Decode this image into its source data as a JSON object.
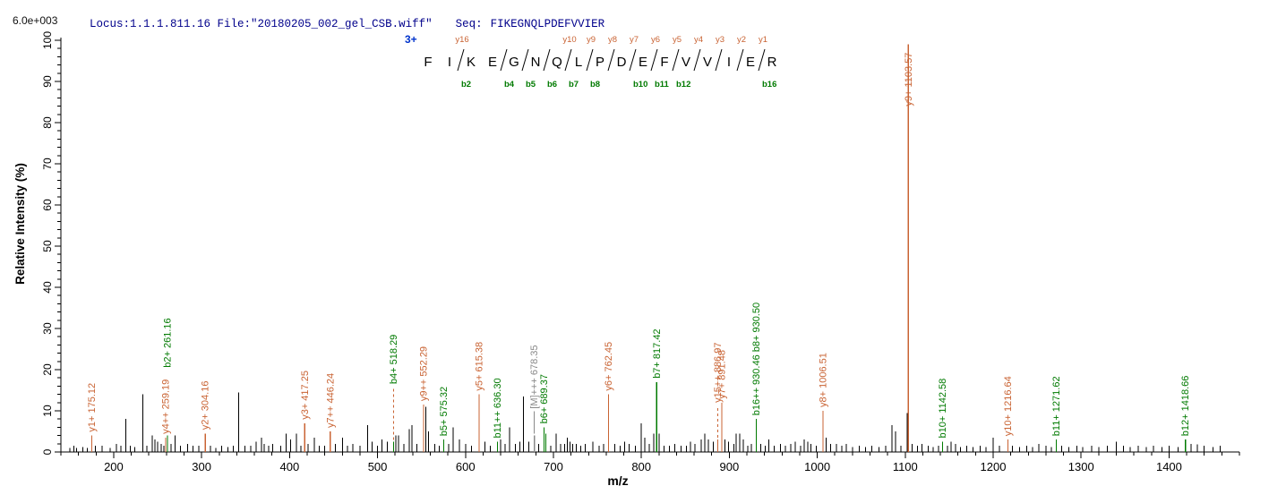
{
  "header": {
    "locus_file": "Locus:1.1.1.811.16 File:\"20180205_002_gel_CSB.wiff\"",
    "seq_label": "Seq:",
    "sequence": "FIKEGNQLPDEFVVIER"
  },
  "scale_note": "6.0e+003",
  "colors": {
    "orange": "#c96333",
    "green": "#007a00",
    "gray": "#8a8a8a",
    "black": "#000000",
    "navy": "#00008b",
    "blue": "#0033cc"
  },
  "peptide": {
    "charge": "3+",
    "residues": [
      "F",
      "I",
      "K",
      "E",
      "G",
      "N",
      "Q",
      "L",
      "P",
      "D",
      "E",
      "F",
      "V",
      "V",
      "I",
      "E",
      "R"
    ],
    "boundaries": [
      {
        "after": 2,
        "y": "y16",
        "b": "b2"
      },
      {
        "after": 4,
        "y": null,
        "b": "b4"
      },
      {
        "after": 5,
        "y": null,
        "b": "b5"
      },
      {
        "after": 6,
        "y": null,
        "b": "b6"
      },
      {
        "after": 7,
        "y": "y10",
        "b": "b7"
      },
      {
        "after": 8,
        "y": "y9",
        "b": "b8"
      },
      {
        "after": 9,
        "y": "y8",
        "b": null
      },
      {
        "after": 10,
        "y": "y7",
        "b": "b10"
      },
      {
        "after": 11,
        "y": "y6",
        "b": "b11"
      },
      {
        "after": 12,
        "y": "y5",
        "b": "b12"
      },
      {
        "after": 13,
        "y": "y4",
        "b": null
      },
      {
        "after": 14,
        "y": "y3",
        "b": null
      },
      {
        "after": 15,
        "y": "y2",
        "b": null
      },
      {
        "after": 16,
        "y": "y1",
        "b": "b16"
      }
    ]
  },
  "chart_data": {
    "type": "bar",
    "xlabel": "m/z",
    "ylabel": "Relative  Intensity (%)",
    "intensity_scale": "6.0e+003",
    "x_range": [
      140,
      1480
    ],
    "y_range": [
      0,
      100
    ],
    "x_ticks": {
      "major_step": 100,
      "minor_step": 20,
      "labeled_from": 200,
      "labeled_to": 1400
    },
    "y_ticks": {
      "major_step": 10,
      "minor_step": 2
    },
    "labeled_peaks": [
      {
        "ion": "y1+",
        "mz": 175.12,
        "pct": 4,
        "label": "y1+ 175.12",
        "color": "orange"
      },
      {
        "ion": "y4++",
        "mz": 259.19,
        "pct": 3.5,
        "label": "y4++ 259.19",
        "color": "orange"
      },
      {
        "ion": "b2+",
        "mz": 261.16,
        "pct": 4,
        "label": "b2+ 261.16",
        "color": "green",
        "label_base_pct": 20.5
      },
      {
        "ion": "y2+",
        "mz": 304.16,
        "pct": 4.5,
        "label": "y2+ 304.16",
        "color": "orange"
      },
      {
        "ion": "y3+",
        "mz": 417.25,
        "pct": 7,
        "label": "y3+ 417.25",
        "color": "orange"
      },
      {
        "ion": "y7++",
        "mz": 446.24,
        "pct": 5,
        "label": "y7++ 446.24",
        "color": "orange"
      },
      {
        "ion": "b4+",
        "mz": 518.29,
        "pct": 2.5,
        "label": "b4+ 518.29",
        "color": "green",
        "label_base_pct": 16.5,
        "connector": "dashed",
        "connector_color": "orange"
      },
      {
        "ion": "y9++",
        "mz": 552.29,
        "pct": 11.5,
        "label": "y9++ 552.29",
        "color": "orange"
      },
      {
        "ion": "b5+",
        "mz": 575.32,
        "pct": 3,
        "label": "b5+ 575.32",
        "color": "green"
      },
      {
        "ion": "y5+",
        "mz": 615.38,
        "pct": 14,
        "label": "y5+ 615.38",
        "color": "orange"
      },
      {
        "ion": "b11++",
        "mz": 636.3,
        "pct": 2.5,
        "label": "b11++ 636.30",
        "color": "green"
      },
      {
        "ion": "[M]+++",
        "mz": 678.35,
        "pct": 4,
        "label": "[M]+++ 678.35",
        "color": "gray",
        "label_base_pct": 10.5,
        "connector": "solid",
        "connector_color": "gray"
      },
      {
        "ion": "b6+",
        "mz": 689.37,
        "pct": 6,
        "label": "b6+ 689.37",
        "color": "green"
      },
      {
        "ion": "y6+",
        "mz": 762.45,
        "pct": 14,
        "label": "y6+ 762.45",
        "color": "orange"
      },
      {
        "ion": "b7+",
        "mz": 817.42,
        "pct": 17,
        "label": "b7+ 817.42",
        "color": "green"
      },
      {
        "ion": "y15++",
        "mz": 886.97,
        "pct": 3,
        "label": "y15++ 886.97",
        "color": "orange",
        "label_base_pct": 12,
        "connector": "dashed",
        "connector_color": "orange"
      },
      {
        "ion": "y7+",
        "mz": 891.48,
        "pct": 12,
        "label": "y7+ 891.48",
        "color": "orange"
      },
      {
        "ion": "b16++/b8+",
        "mz": 930.5,
        "pct": 8,
        "label": "b16++ 930.46 b8+ 930.50",
        "color": "green"
      },
      {
        "ion": "y8+",
        "mz": 1006.51,
        "pct": 10,
        "label": "y8+ 1006.51",
        "color": "orange"
      },
      {
        "ion": "y9+",
        "mz": 1103.57,
        "pct": 99,
        "label": "y9+ 1103.57",
        "color": "orange",
        "label_base_pct": 84,
        "width": 1.6
      },
      {
        "ion": "b10+",
        "mz": 1142.58,
        "pct": 2.5,
        "label": "b10+ 1142.58",
        "color": "green"
      },
      {
        "ion": "y10+",
        "mz": 1216.64,
        "pct": 3,
        "label": "y10+ 1216.64",
        "color": "orange"
      },
      {
        "ion": "b11+",
        "mz": 1271.62,
        "pct": 3,
        "label": "b11+ 1271.62",
        "color": "green"
      },
      {
        "ion": "b12+",
        "mz": 1418.66,
        "pct": 3,
        "label": "b12+ 1418.66",
        "color": "green"
      }
    ],
    "unlabeled_peaks": [
      [
        150,
        1
      ],
      [
        155,
        1.5
      ],
      [
        158,
        1
      ],
      [
        165,
        1.2
      ],
      [
        170,
        1
      ],
      [
        179,
        1.5
      ],
      [
        187,
        1.5
      ],
      [
        196,
        1
      ],
      [
        203,
        2
      ],
      [
        208,
        1.5
      ],
      [
        214,
        8
      ],
      [
        219,
        1.5
      ],
      [
        224,
        1.2
      ],
      [
        233,
        14
      ],
      [
        238,
        1.5
      ],
      [
        244,
        4
      ],
      [
        247,
        3
      ],
      [
        250,
        2.5
      ],
      [
        254,
        2
      ],
      [
        257,
        1.5
      ],
      [
        265,
        2
      ],
      [
        270,
        4
      ],
      [
        276,
        1.5
      ],
      [
        284,
        2
      ],
      [
        290,
        1.5
      ],
      [
        297,
        1.5
      ],
      [
        310,
        1.5
      ],
      [
        316,
        1
      ],
      [
        323,
        1.5
      ],
      [
        330,
        1.2
      ],
      [
        336,
        1.5
      ],
      [
        342,
        14.5
      ],
      [
        349,
        1.5
      ],
      [
        356,
        1.5
      ],
      [
        362,
        2.5
      ],
      [
        368,
        3.5
      ],
      [
        371,
        2
      ],
      [
        376,
        1.5
      ],
      [
        381,
        2
      ],
      [
        390,
        1.5
      ],
      [
        396,
        4.5
      ],
      [
        401,
        3
      ],
      [
        408,
        4.5
      ],
      [
        413,
        1.5
      ],
      [
        421,
        2
      ],
      [
        428,
        3.5
      ],
      [
        434,
        1.5
      ],
      [
        440,
        1.5
      ],
      [
        452,
        2
      ],
      [
        460,
        3.5
      ],
      [
        466,
        1.5
      ],
      [
        472,
        2
      ],
      [
        480,
        1.5
      ],
      [
        489,
        6.5
      ],
      [
        494,
        2.5
      ],
      [
        500,
        1.5
      ],
      [
        505,
        3
      ],
      [
        511,
        2.5
      ],
      [
        521,
        4
      ],
      [
        524,
        4
      ],
      [
        530,
        2
      ],
      [
        536,
        5.5
      ],
      [
        539,
        6.5
      ],
      [
        545,
        2
      ],
      [
        555,
        11
      ],
      [
        558,
        5
      ],
      [
        565,
        2
      ],
      [
        570,
        1.5
      ],
      [
        581,
        2
      ],
      [
        586,
        6
      ],
      [
        593,
        3
      ],
      [
        600,
        2
      ],
      [
        607,
        1.5
      ],
      [
        622,
        2.5
      ],
      [
        628,
        1.5
      ],
      [
        640,
        3
      ],
      [
        645,
        2
      ],
      [
        650,
        6
      ],
      [
        657,
        2
      ],
      [
        662,
        2.5
      ],
      [
        666,
        13.5
      ],
      [
        672,
        2.5
      ],
      [
        683,
        2
      ],
      [
        691.5,
        4.5,
        "g"
      ],
      [
        697,
        1.5
      ],
      [
        703,
        4.5
      ],
      [
        708,
        2
      ],
      [
        713,
        2
      ],
      [
        716,
        3.5
      ],
      [
        719,
        2.5
      ],
      [
        722,
        2
      ],
      [
        726,
        2
      ],
      [
        731,
        1.5
      ],
      [
        736,
        2
      ],
      [
        745,
        2.5
      ],
      [
        752,
        1.5
      ],
      [
        757,
        2
      ],
      [
        770,
        2
      ],
      [
        776,
        1.5
      ],
      [
        781,
        2.5
      ],
      [
        786,
        2
      ],
      [
        793,
        1.5
      ],
      [
        800,
        7
      ],
      [
        804,
        3.5
      ],
      [
        809,
        2
      ],
      [
        814,
        4.5
      ],
      [
        820,
        4.5
      ],
      [
        826,
        1.5
      ],
      [
        832,
        1.5
      ],
      [
        838,
        2
      ],
      [
        845,
        1.5
      ],
      [
        851,
        1.5
      ],
      [
        856,
        2.5
      ],
      [
        861,
        2
      ],
      [
        868,
        3
      ],
      [
        872,
        4.5
      ],
      [
        876,
        3
      ],
      [
        882,
        2.5
      ],
      [
        895,
        3
      ],
      [
        899,
        2.5
      ],
      [
        905,
        2
      ],
      [
        908,
        4.5
      ],
      [
        912,
        4.5
      ],
      [
        916,
        3
      ],
      [
        921,
        1.5
      ],
      [
        925,
        2
      ],
      [
        936,
        2
      ],
      [
        941,
        1.5
      ],
      [
        945,
        3
      ],
      [
        951,
        1.5
      ],
      [
        958,
        2
      ],
      [
        964,
        1.5
      ],
      [
        970,
        2
      ],
      [
        975,
        2.5
      ],
      [
        981,
        1.5
      ],
      [
        985,
        3
      ],
      [
        989,
        2.5
      ],
      [
        993,
        2
      ],
      [
        999,
        1.5
      ],
      [
        1010,
        3.5
      ],
      [
        1015,
        2
      ],
      [
        1022,
        2
      ],
      [
        1028,
        1.5
      ],
      [
        1033,
        2
      ],
      [
        1040,
        1.2
      ],
      [
        1048,
        1.5
      ],
      [
        1055,
        1.2
      ],
      [
        1062,
        1.5
      ],
      [
        1070,
        1.2
      ],
      [
        1078,
        1.5
      ],
      [
        1085,
        6.5
      ],
      [
        1089,
        5
      ],
      [
        1095,
        1.5
      ],
      [
        1102,
        9.5
      ],
      [
        1108,
        2
      ],
      [
        1114,
        1.5
      ],
      [
        1119,
        2
      ],
      [
        1126,
        1.5
      ],
      [
        1132,
        1.2
      ],
      [
        1138,
        1.5
      ],
      [
        1148,
        1.5
      ],
      [
        1152,
        2.5
      ],
      [
        1157,
        2
      ],
      [
        1163,
        1.2
      ],
      [
        1170,
        1.5
      ],
      [
        1177,
        1.2
      ],
      [
        1185,
        1.5
      ],
      [
        1192,
        1.2
      ],
      [
        1200,
        3.5
      ],
      [
        1207,
        1.5
      ],
      [
        1222,
        1.5
      ],
      [
        1230,
        1.2
      ],
      [
        1238,
        1.5
      ],
      [
        1245,
        1.2
      ],
      [
        1252,
        2
      ],
      [
        1260,
        1.5
      ],
      [
        1266,
        1.2
      ],
      [
        1278,
        1.5
      ],
      [
        1286,
        1.2
      ],
      [
        1295,
        1.5
      ],
      [
        1302,
        1.2
      ],
      [
        1312,
        1.5
      ],
      [
        1320,
        1.2
      ],
      [
        1330,
        1.5
      ],
      [
        1340,
        2.5
      ],
      [
        1348,
        1.5
      ],
      [
        1356,
        1.2
      ],
      [
        1365,
        1.5
      ],
      [
        1374,
        1.2
      ],
      [
        1382,
        1.5
      ],
      [
        1392,
        1.2
      ],
      [
        1400,
        1.5
      ],
      [
        1410,
        1.2
      ],
      [
        1425,
        2
      ],
      [
        1432,
        1.8
      ],
      [
        1440,
        1.5
      ],
      [
        1450,
        1.2
      ],
      [
        1458,
        1.5
      ]
    ]
  }
}
